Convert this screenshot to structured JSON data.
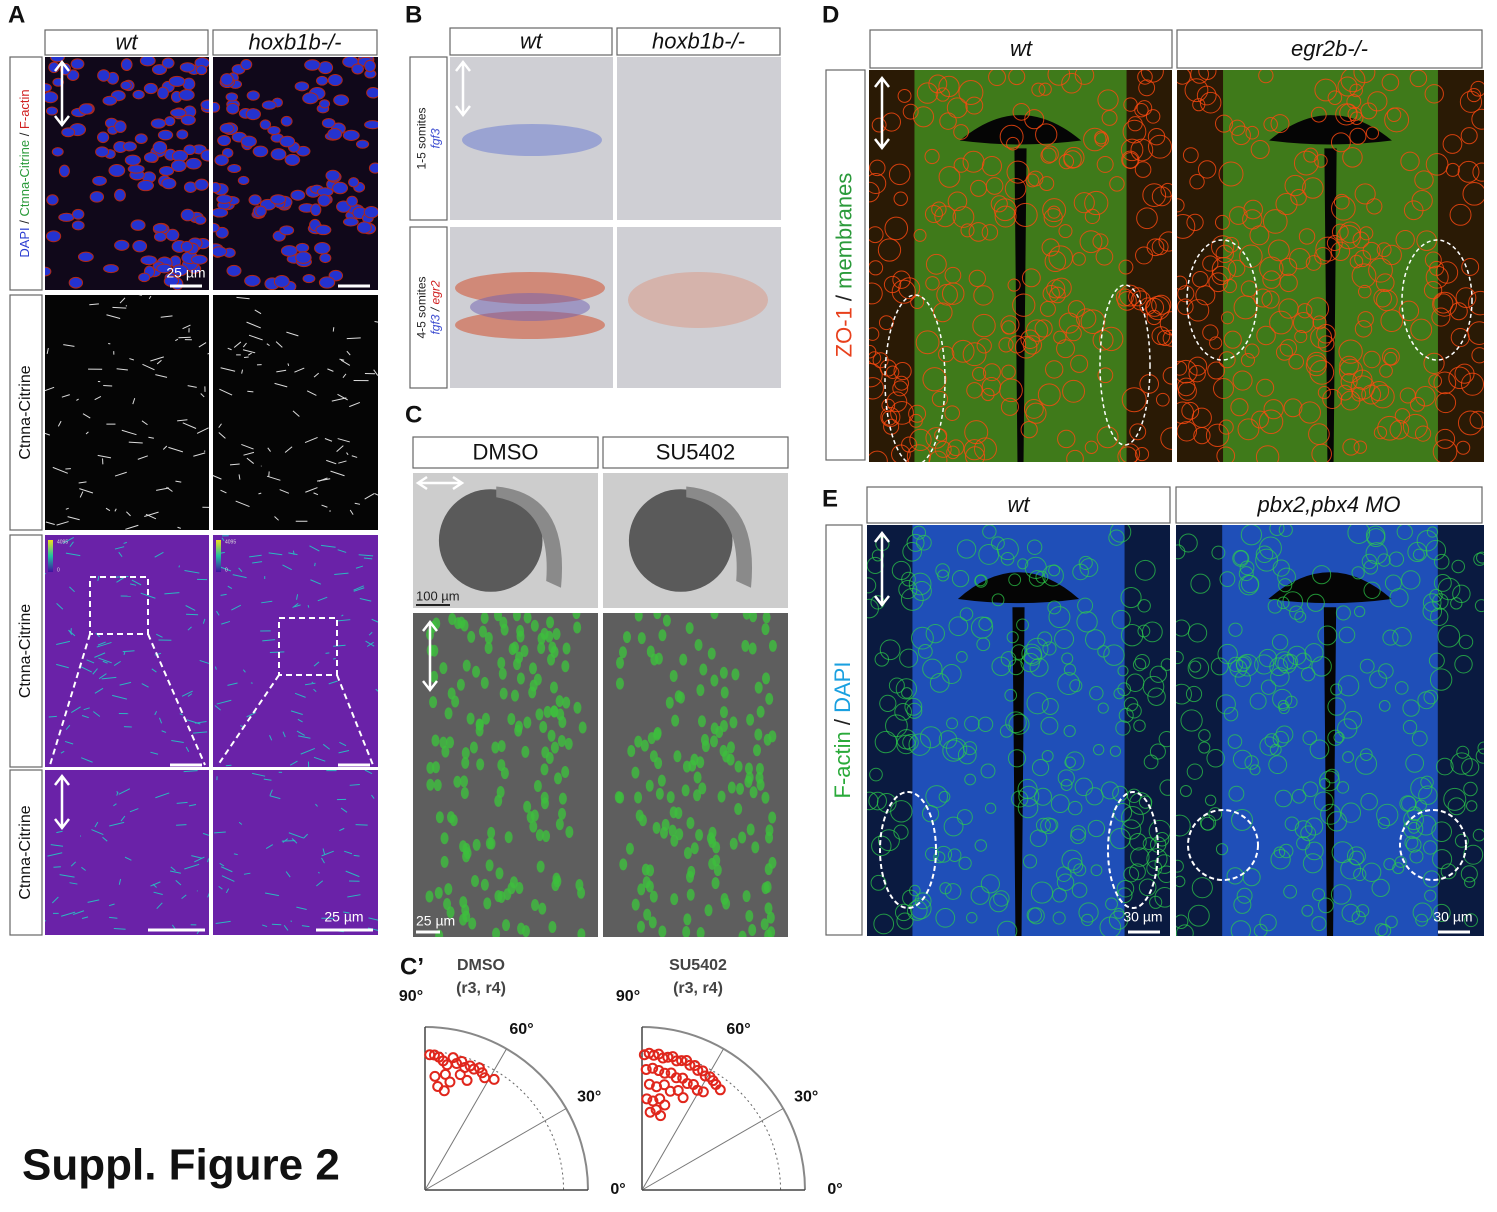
{
  "figure_title": "Suppl. Figure 2",
  "panel_a": {
    "letter": "A",
    "columns": [
      "wt",
      "hoxb1b-/-"
    ],
    "row_labels": [
      [
        {
          "text": "DAPI",
          "color": "#2a3cd0"
        },
        {
          "text": " / ",
          "color": "#222"
        },
        {
          "text": "Ctnna-Citrine",
          "color": "#2a9a3a"
        },
        {
          "text": " / ",
          "color": "#222"
        },
        {
          "text": "F-actin",
          "color": "#d02020"
        }
      ],
      [
        {
          "text": "Ctnna-Citrine",
          "color": "#111"
        }
      ],
      [
        {
          "text": "Ctnna-Citrine",
          "color": "#111"
        }
      ],
      [
        {
          "text": "Ctnna-Citrine",
          "color": "#111"
        }
      ]
    ],
    "colorbar_labels": [
      "4095",
      "0"
    ],
    "scale_bar_top": "25 µm",
    "scale_bar_bottom": "25 µm"
  },
  "panel_b": {
    "letter": "B",
    "columns": [
      "wt",
      "hoxb1b-/-"
    ],
    "row_labels": [
      [
        {
          "text": "1-5 somites",
          "color": "#222"
        }
      ],
      [
        {
          "text": "4-5 somites",
          "color": "#222"
        }
      ]
    ],
    "gene_labels": [
      [
        {
          "text": "fgf3",
          "color": "#3a4ad0"
        }
      ],
      [
        {
          "text": "fgf3",
          "color": "#3a4ad0"
        },
        {
          "text": " / ",
          "color": "#222"
        },
        {
          "text": "egr2",
          "color": "#d02020"
        }
      ]
    ]
  },
  "panel_c": {
    "letter": "C",
    "columns": [
      "DMSO",
      "SU5402"
    ],
    "scale_bar_top": "100 µm",
    "scale_bar_bottom": "25 µm"
  },
  "panel_c_prime": {
    "letter": "C’",
    "rlim": [
      0,
      1
    ],
    "angle_ticks": [
      {
        "value": 90,
        "label": "90°"
      },
      {
        "value": 60,
        "label": "60°"
      },
      {
        "value": 30,
        "label": "30°"
      },
      {
        "value": 0,
        "label": "0°"
      }
    ],
    "plots": [
      {
        "title": "DMSO",
        "subtitle": "(r3, r4)",
        "color": "#e0261c",
        "theta": [
          88,
          86,
          84,
          82,
          80,
          78,
          76,
          74,
          72,
          70,
          68,
          66,
          64,
          62,
          58,
          85,
          80,
          77,
          73,
          69,
          83,
          79
        ],
        "r": [
          0.83,
          0.83,
          0.82,
          0.8,
          0.78,
          0.83,
          0.8,
          0.82,
          0.79,
          0.81,
          0.8,
          0.82,
          0.8,
          0.78,
          0.8,
          0.7,
          0.72,
          0.68,
          0.74,
          0.72,
          0.64,
          0.62
        ]
      },
      {
        "title": "SU5402",
        "subtitle": "(r3, r4)",
        "color": "#e0261c",
        "theta": [
          89,
          87,
          85,
          83,
          81,
          79,
          77,
          75,
          73,
          71,
          69,
          67,
          65,
          63,
          61,
          59,
          57,
          55,
          52,
          88,
          85,
          82,
          79,
          76,
          73,
          70,
          67,
          64,
          61,
          58,
          86,
          82,
          78,
          74,
          70,
          66,
          87,
          83,
          79,
          75,
          84,
          80,
          76
        ],
        "r": [
          0.83,
          0.84,
          0.83,
          0.84,
          0.82,
          0.83,
          0.84,
          0.82,
          0.83,
          0.84,
          0.82,
          0.83,
          0.81,
          0.82,
          0.8,
          0.81,
          0.8,
          0.79,
          0.78,
          0.74,
          0.75,
          0.74,
          0.73,
          0.74,
          0.72,
          0.73,
          0.71,
          0.72,
          0.7,
          0.71,
          0.65,
          0.64,
          0.66,
          0.63,
          0.65,
          0.62,
          0.56,
          0.55,
          0.57,
          0.54,
          0.48,
          0.5,
          0.47
        ]
      }
    ]
  },
  "panel_d": {
    "letter": "D",
    "columns": [
      "wt",
      "egr2b-/-"
    ],
    "row_labels": [
      [
        {
          "text": "ZO-1",
          "color": "#e8401c"
        },
        {
          "text": " / ",
          "color": "#222"
        },
        {
          "text": "membranes",
          "color": "#2a9a3a"
        }
      ]
    ]
  },
  "panel_e": {
    "letter": "E",
    "columns": [
      "wt",
      "pbx2,pbx4 MO"
    ],
    "row_labels": [
      [
        {
          "text": "F-actin",
          "color": "#2aaa3a"
        },
        {
          "text": " / ",
          "color": "#222"
        },
        {
          "text": "DAPI",
          "color": "#1aa0e0"
        }
      ]
    ],
    "scale_bar_left": "30 µm",
    "scale_bar_right": "30 µm"
  }
}
